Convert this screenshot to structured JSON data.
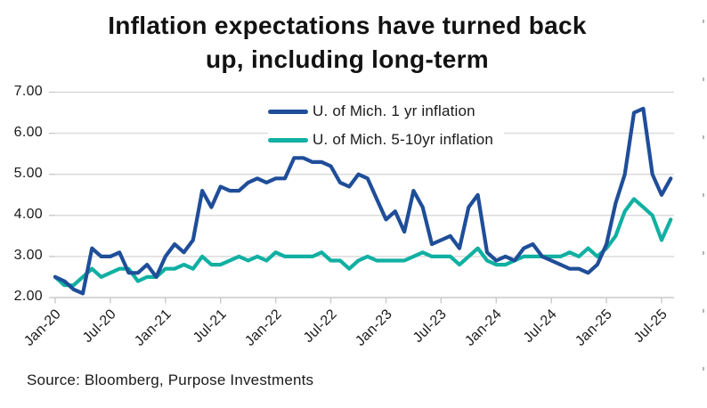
{
  "title": "Inflation expectations have turned back\nup, including long-term",
  "source": "Source: Bloomberg, Purpose Investments",
  "colors": {
    "series_1yr": "#1f4e99",
    "series_5_10yr": "#10b0a2",
    "gridline": "#d9d9d9",
    "axis": "#c9c9c9",
    "tick": "#c9c9c9",
    "text": "#1a1a1a"
  },
  "chart_data": {
    "type": "line",
    "title": "Inflation expectations have turned back up, including long-term",
    "x_start": "Jan-20",
    "x_frequency": "monthly",
    "x_tick_labels": [
      "Jan-20",
      "Jul-20",
      "Jan-21",
      "Jul-21",
      "Jan-22",
      "Jul-22",
      "Jan-23",
      "Jul-23",
      "Jan-24",
      "Jul-24",
      "Jan-25",
      "Jul-25"
    ],
    "x_tick_month_indices": [
      0,
      6,
      12,
      18,
      24,
      30,
      36,
      42,
      48,
      54,
      60,
      66
    ],
    "y_tick_labels": [
      "2.00",
      "3.00",
      "4.00",
      "5.00",
      "6.00",
      "7.00"
    ],
    "y_ticks": [
      2,
      3,
      4,
      5,
      6,
      7
    ],
    "ylim": [
      2,
      7
    ],
    "grid": "horizontal",
    "legend_position": "top-center-inside",
    "series": [
      {
        "name": "U. of Mich. 1 yr inflation",
        "color": "#1f4e99",
        "values": [
          2.5,
          2.4,
          2.2,
          2.1,
          3.2,
          3.0,
          3.0,
          3.1,
          2.6,
          2.6,
          2.8,
          2.5,
          3.0,
          3.3,
          3.1,
          3.4,
          4.6,
          4.2,
          4.7,
          4.6,
          4.6,
          4.8,
          4.9,
          4.8,
          4.9,
          4.9,
          5.4,
          5.4,
          5.3,
          5.3,
          5.2,
          4.8,
          4.7,
          5.0,
          4.9,
          4.4,
          3.9,
          4.1,
          3.6,
          4.6,
          4.2,
          3.3,
          3.4,
          3.5,
          3.2,
          4.2,
          4.5,
          3.1,
          2.9,
          3.0,
          2.9,
          3.2,
          3.3,
          3.0,
          2.9,
          2.8,
          2.7,
          2.7,
          2.6,
          2.8,
          3.3,
          4.3,
          5.0,
          6.5,
          6.6,
          5.0,
          4.5,
          4.9
        ]
      },
      {
        "name": "U. of Mich. 5-10yr inflation",
        "color": "#10b0a2",
        "values": [
          2.5,
          2.3,
          2.3,
          2.5,
          2.7,
          2.5,
          2.6,
          2.7,
          2.7,
          2.4,
          2.5,
          2.5,
          2.7,
          2.7,
          2.8,
          2.7,
          3.0,
          2.8,
          2.8,
          2.9,
          3.0,
          2.9,
          3.0,
          2.9,
          3.1,
          3.0,
          3.0,
          3.0,
          3.0,
          3.1,
          2.9,
          2.9,
          2.7,
          2.9,
          3.0,
          2.9,
          2.9,
          2.9,
          2.9,
          3.0,
          3.1,
          3.0,
          3.0,
          3.0,
          2.8,
          3.0,
          3.2,
          2.9,
          2.8,
          2.8,
          2.9,
          3.0,
          3.0,
          3.0,
          3.0,
          3.0,
          3.1,
          3.0,
          3.2,
          3.0,
          3.2,
          3.5,
          4.1,
          4.4,
          4.2,
          4.0,
          3.4,
          3.9
        ]
      }
    ]
  }
}
